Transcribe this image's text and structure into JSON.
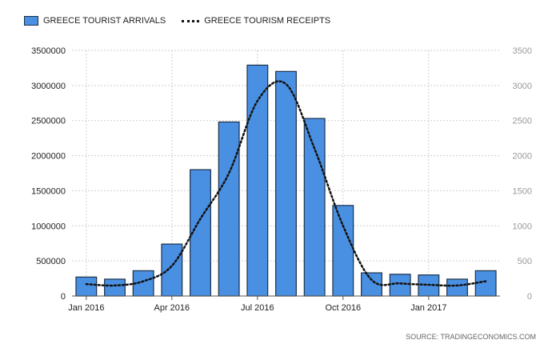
{
  "legend": {
    "arrivals_label": "GREECE TOURIST ARRIVALS",
    "receipts_label": "GREECE TOURISM RECEIPTS"
  },
  "source": "SOURCE: TRADINGECONOMICS.COM",
  "colors": {
    "bar": "#4a90e2",
    "bar_border": "#1b2f4a",
    "line": "#111111",
    "grid": "#cfcfcf"
  },
  "chart_data": {
    "type": "bar",
    "categories": [
      "2016-01",
      "2016-02",
      "2016-03",
      "2016-04",
      "2016-05",
      "2016-06",
      "2016-07",
      "2016-08",
      "2016-09",
      "2016-10",
      "2016-11",
      "2016-12",
      "2017-01",
      "2017-02",
      "2017-03"
    ],
    "x_tick_labels": [
      {
        "index": 0,
        "label": "Jan 2016"
      },
      {
        "index": 3,
        "label": "Apr 2016"
      },
      {
        "index": 6,
        "label": "Jul 2016"
      },
      {
        "index": 9,
        "label": "Oct 2016"
      },
      {
        "index": 12,
        "label": "Jan 2017"
      }
    ],
    "series": [
      {
        "name": "GREECE TOURIST ARRIVALS",
        "type": "bar",
        "axis": "left",
        "values": [
          270000,
          240000,
          360000,
          740000,
          1800000,
          2480000,
          3290000,
          3200000,
          2530000,
          1290000,
          330000,
          310000,
          300000,
          240000,
          360000
        ]
      },
      {
        "name": "GREECE TOURISM RECEIPTS",
        "type": "line",
        "axis": "right",
        "style": "dotted",
        "values": [
          170,
          150,
          210,
          430,
          1100,
          1750,
          2780,
          3020,
          2100,
          1000,
          230,
          180,
          160,
          150,
          210
        ]
      }
    ],
    "ylim_left": [
      0,
      3500000
    ],
    "yticks_left": [
      "0",
      "500000",
      "1000000",
      "1500000",
      "2000000",
      "2500000",
      "3000000",
      "3500000"
    ],
    "ylim_right": [
      0,
      3500
    ],
    "yticks_right": [
      "0",
      "500",
      "1000",
      "1500",
      "2000",
      "2500",
      "3000",
      "3500"
    ],
    "grid": true,
    "legend_position": "top-left"
  }
}
